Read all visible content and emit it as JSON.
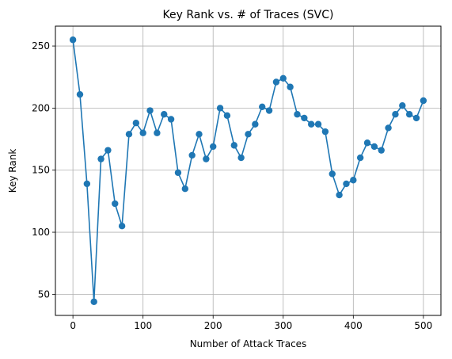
{
  "chart_data": {
    "type": "line",
    "title": "Key Rank vs. # of Traces (SVC)",
    "xlabel": "Number of Attack Traces",
    "ylabel": "Key Rank",
    "xlim": [
      -25,
      525
    ],
    "ylim": [
      33,
      266
    ],
    "xticks": [
      0,
      100,
      200,
      300,
      400,
      500
    ],
    "yticks": [
      50,
      100,
      150,
      200,
      250
    ],
    "grid": true,
    "series": [
      {
        "color": "#1f77b4",
        "marker": "circle",
        "x": [
          0,
          10,
          20,
          30,
          40,
          50,
          60,
          70,
          80,
          90,
          100,
          110,
          120,
          130,
          140,
          150,
          160,
          170,
          180,
          190,
          200,
          210,
          220,
          230,
          240,
          250,
          260,
          270,
          280,
          290,
          300,
          310,
          320,
          330,
          340,
          350,
          360,
          370,
          380,
          390,
          400,
          410,
          420,
          430,
          440,
          450,
          460,
          470,
          480,
          490,
          500
        ],
        "y": [
          255,
          211,
          139,
          44,
          159,
          166,
          123,
          105,
          179,
          188,
          180,
          198,
          180,
          195,
          191,
          148,
          135,
          162,
          179,
          159,
          169,
          200,
          194,
          170,
          160,
          179,
          187,
          201,
          198,
          221,
          224,
          217,
          195,
          192,
          187,
          187,
          181,
          147,
          130,
          139,
          142,
          160,
          172,
          169,
          166,
          184,
          195,
          202,
          195,
          192,
          206
        ]
      }
    ]
  }
}
